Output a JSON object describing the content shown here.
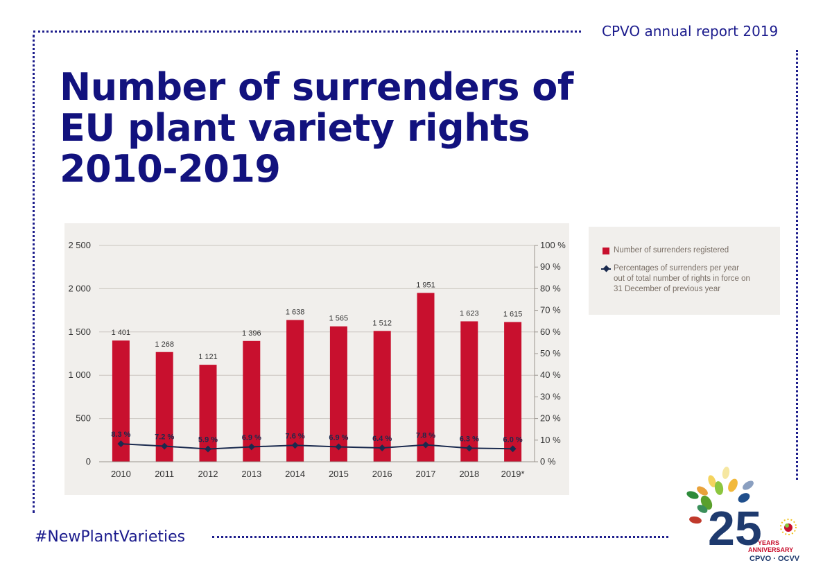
{
  "header": {
    "report_label": "CPVO annual report 2019"
  },
  "title": {
    "line1": "Number of surrenders of",
    "line2": "EU plant variety rights",
    "line3": "2010-2019"
  },
  "legend": {
    "bars_label": "Number of surrenders registered",
    "line_label_1": "Percentages of surrenders per year",
    "line_label_2": "out of total number of rights in force on",
    "line_label_3": "31 December of previous year"
  },
  "footer": {
    "hashtag": "#NewPlantVarieties"
  },
  "logo": {
    "years_text": "YEARS",
    "anniversary_text": "ANNIVERSARY",
    "org_text": "CPVO · OCVV"
  },
  "colors": {
    "bar": "#c8102e",
    "line": "#1a2a4e",
    "accent": "#12127e"
  },
  "chart_data": {
    "type": "bar",
    "categories": [
      "2010",
      "2011",
      "2012",
      "2013",
      "2014",
      "2015",
      "2016",
      "2017",
      "2018",
      "2019*"
    ],
    "series": [
      {
        "name": "Number of surrenders registered",
        "type": "bar",
        "axis": "left",
        "values": [
          1401,
          1268,
          1121,
          1396,
          1638,
          1565,
          1512,
          1951,
          1623,
          1615
        ],
        "labels": [
          "1 401",
          "1 268",
          "1 121",
          "1 396",
          "1 638",
          "1 565",
          "1 512",
          "1 951",
          "1 623",
          "1 615"
        ]
      },
      {
        "name": "Percentages of surrenders per year out of total number of rights in force on 31 December of previous year",
        "type": "line",
        "axis": "right",
        "values": [
          8.3,
          7.2,
          5.9,
          6.9,
          7.6,
          6.9,
          6.4,
          7.8,
          6.3,
          6.0
        ],
        "labels": [
          "8.3 %",
          "7.2 %",
          "5.9 %",
          "6.9 %",
          "7.6 %",
          "6.9 %",
          "6.4 %",
          "7.8 %",
          "6.3 %",
          "6.0 %"
        ]
      }
    ],
    "y_left": {
      "range": [
        0,
        2500
      ],
      "ticks": [
        0,
        500,
        1000,
        1500,
        2000,
        2500
      ],
      "tick_labels": [
        "0",
        "500",
        "1 000",
        "1 500",
        "2 000",
        "2 500"
      ]
    },
    "y_right": {
      "range": [
        0,
        100
      ],
      "ticks": [
        0,
        10,
        20,
        30,
        40,
        50,
        60,
        70,
        80,
        90,
        100
      ],
      "tick_labels": [
        "0 %",
        "10 %",
        "20 %",
        "30 %",
        "40 %",
        "50 %",
        "60 %",
        "70 %",
        "80 %",
        "90 %",
        "100 %"
      ]
    },
    "grid": true,
    "legend_position": "right"
  }
}
